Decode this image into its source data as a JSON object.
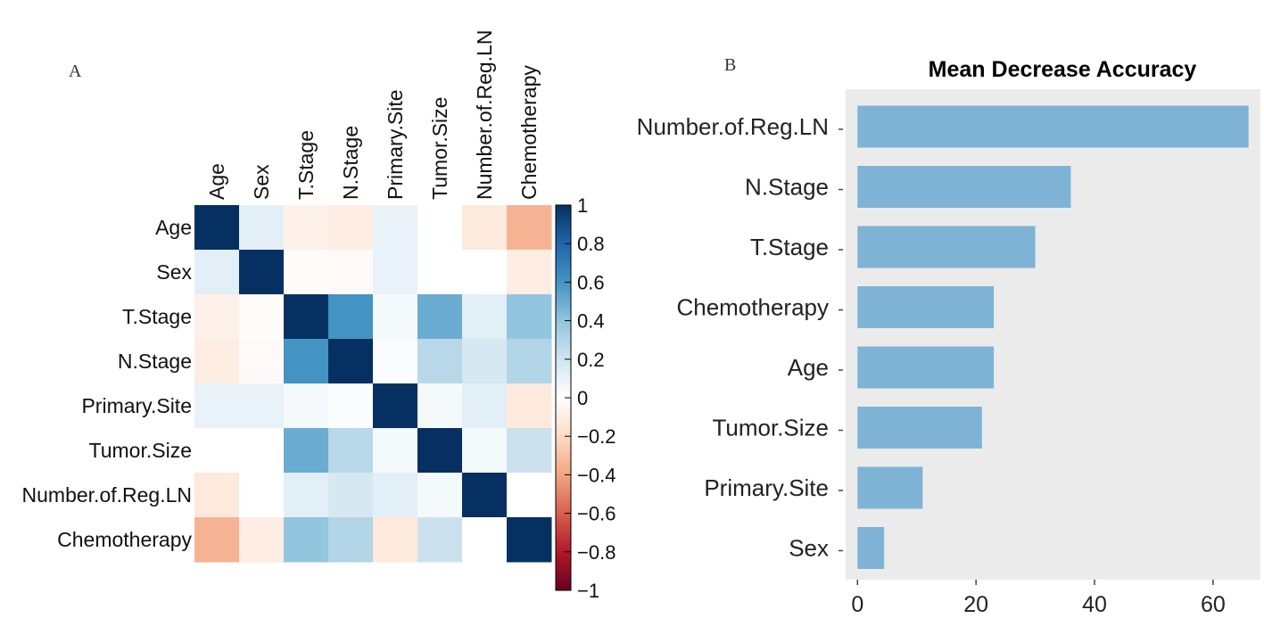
{
  "panel_a_letter": "A",
  "panel_b_letter": "B",
  "colors": {
    "strong_positive": "#053061",
    "positive": "#2166ac",
    "mid_positive": "#4393c3",
    "light_positive": "#92c5de",
    "pale_positive": "#d1e5f0",
    "neutral": "#ffffff",
    "pale_negative": "#fddbc7",
    "light_negative": "#f4a582",
    "mid_negative": "#d6604d",
    "negative": "#b2182b",
    "strong_negative": "#67001f",
    "bar": "#7fb3d5",
    "panel_bg": "#ebebeb"
  },
  "chart_data": [
    {
      "type": "heatmap",
      "title": "",
      "variables": [
        "Age",
        "Sex",
        "T.Stage",
        "N.Stage",
        "Primary.Site",
        "Tumor.Size",
        "Number.of.Reg.LN",
        "Chemotherapy"
      ],
      "matrix": [
        [
          1.0,
          0.12,
          -0.08,
          -0.1,
          0.1,
          0.0,
          -0.12,
          -0.35
        ],
        [
          0.12,
          1.0,
          -0.02,
          -0.03,
          0.1,
          0.0,
          0.0,
          -0.1
        ],
        [
          -0.08,
          -0.02,
          1.0,
          0.6,
          0.05,
          0.5,
          0.12,
          0.4
        ],
        [
          -0.1,
          -0.03,
          0.6,
          1.0,
          0.02,
          0.28,
          0.18,
          0.3
        ],
        [
          0.1,
          0.1,
          0.05,
          0.02,
          1.0,
          0.05,
          0.12,
          -0.12
        ],
        [
          0.0,
          0.0,
          0.5,
          0.28,
          0.05,
          1.0,
          0.05,
          0.22
        ],
        [
          -0.12,
          0.0,
          0.12,
          0.18,
          0.12,
          0.05,
          1.0,
          0.0
        ],
        [
          -0.35,
          -0.1,
          0.4,
          0.3,
          -0.12,
          0.22,
          0.0,
          1.0
        ]
      ],
      "colorbar_ticks": [
        "1",
        "0.8",
        "0.6",
        "0.4",
        "0.2",
        "0",
        "−0.2",
        "−0.4",
        "−0.6",
        "−0.8",
        "−1"
      ],
      "colorbar_range": [
        -1,
        1
      ]
    },
    {
      "type": "bar",
      "orientation": "horizontal",
      "title": "Mean Decrease Accuracy",
      "categories": [
        "Number.of.Reg.LN",
        "N.Stage",
        "T.Stage",
        "Chemotherapy",
        "Age",
        "Tumor.Size",
        "Primary.Site",
        "Sex"
      ],
      "values": [
        66,
        36,
        30,
        23,
        23,
        21,
        11,
        4.5
      ],
      "xlim": [
        -2,
        68
      ],
      "xticks": [
        0,
        20,
        40,
        60
      ],
      "xtick_labels": [
        "0",
        "20",
        "40",
        "60"
      ],
      "xlabel": "",
      "ylabel": ""
    }
  ]
}
